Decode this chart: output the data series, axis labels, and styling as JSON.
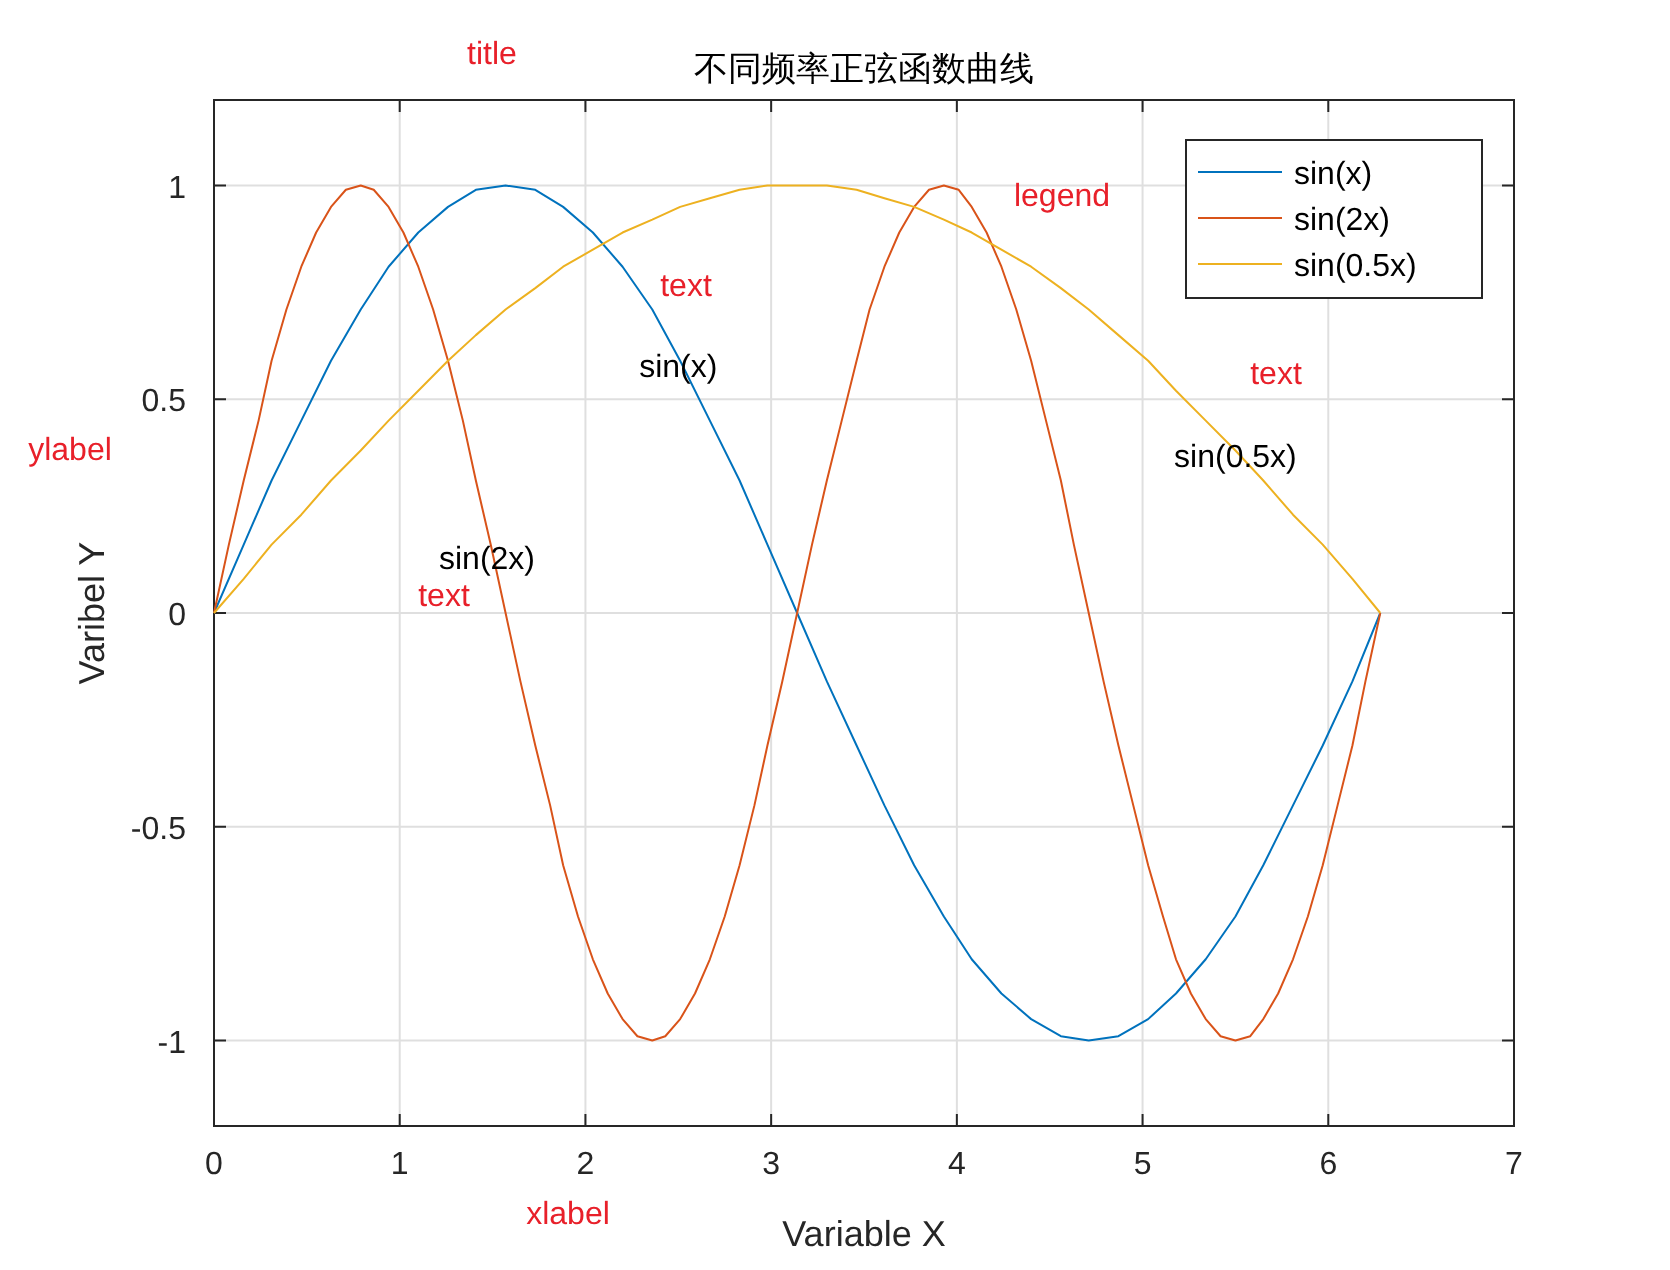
{
  "chart_data": {
    "type": "line",
    "title": "不同频率正弦函数曲线",
    "xlabel": "Variable X",
    "ylabel": "Varibel Y",
    "xlim": [
      0,
      7
    ],
    "xticks": [
      0,
      1,
      2,
      3,
      4,
      5,
      6,
      7
    ],
    "ylim": [
      -1.2,
      1.2
    ],
    "yticks": [
      -1,
      -0.5,
      0,
      0.5,
      1
    ],
    "grid": true,
    "legend": "top right",
    "marker": "none",
    "line_style": "solid",
    "series": [
      {
        "name": "sin(x)",
        "color": "#0072bd",
        "x": [
          0,
          0.16,
          0.31,
          0.47,
          0.63,
          0.79,
          0.94,
          1.1,
          1.26,
          1.41,
          1.57,
          1.73,
          1.88,
          2.04,
          2.2,
          2.36,
          2.51,
          2.67,
          2.83,
          2.98,
          3.14,
          3.3,
          3.46,
          3.61,
          3.77,
          3.93,
          4.08,
          4.24,
          4.4,
          4.56,
          4.71,
          4.87,
          5.03,
          5.18,
          5.34,
          5.5,
          5.65,
          5.81,
          5.97,
          6.13,
          6.28
        ],
        "values": [
          0,
          0.16,
          0.31,
          0.45,
          0.59,
          0.71,
          0.81,
          0.89,
          0.95,
          0.99,
          1,
          0.99,
          0.95,
          0.89,
          0.81,
          0.71,
          0.59,
          0.45,
          0.31,
          0.16,
          0,
          -0.16,
          -0.31,
          -0.45,
          -0.59,
          -0.71,
          -0.81,
          -0.89,
          -0.95,
          -0.99,
          -1,
          -0.99,
          -0.95,
          -0.89,
          -0.81,
          -0.71,
          -0.59,
          -0.45,
          -0.31,
          -0.16,
          0
        ]
      },
      {
        "name": "sin(2x)",
        "color": "#d95319",
        "x": [
          0,
          0.08,
          0.16,
          0.24,
          0.31,
          0.39,
          0.47,
          0.55,
          0.63,
          0.71,
          0.79,
          0.86,
          0.94,
          1.02,
          1.1,
          1.18,
          1.26,
          1.34,
          1.41,
          1.49,
          1.57,
          1.65,
          1.73,
          1.81,
          1.88,
          1.96,
          2.04,
          2.12,
          2.2,
          2.28,
          2.36,
          2.43,
          2.51,
          2.59,
          2.67,
          2.75,
          2.83,
          2.91,
          2.98,
          3.06,
          3.14,
          3.22,
          3.3,
          3.38,
          3.46,
          3.53,
          3.61,
          3.69,
          3.77,
          3.85,
          3.93,
          4.01,
          4.08,
          4.16,
          4.24,
          4.32,
          4.4,
          4.48,
          4.56,
          4.63,
          4.71,
          4.79,
          4.87,
          4.95,
          5.03,
          5.11,
          5.18,
          5.26,
          5.34,
          5.42,
          5.5,
          5.58,
          5.65,
          5.73,
          5.81,
          5.89,
          5.97,
          6.05,
          6.13,
          6.2,
          6.28
        ],
        "values": [
          0,
          0.16,
          0.31,
          0.45,
          0.59,
          0.71,
          0.81,
          0.89,
          0.95,
          0.99,
          1,
          0.99,
          0.95,
          0.89,
          0.81,
          0.71,
          0.59,
          0.45,
          0.31,
          0.16,
          0,
          -0.16,
          -0.31,
          -0.45,
          -0.59,
          -0.71,
          -0.81,
          -0.89,
          -0.95,
          -0.99,
          -1,
          -0.99,
          -0.95,
          -0.89,
          -0.81,
          -0.71,
          -0.59,
          -0.45,
          -0.31,
          -0.16,
          0,
          0.16,
          0.31,
          0.45,
          0.59,
          0.71,
          0.81,
          0.89,
          0.95,
          0.99,
          1,
          0.99,
          0.95,
          0.89,
          0.81,
          0.71,
          0.59,
          0.45,
          0.31,
          0.16,
          0,
          -0.16,
          -0.31,
          -0.45,
          -0.59,
          -0.71,
          -0.81,
          -0.89,
          -0.95,
          -0.99,
          -1,
          -0.99,
          -0.95,
          -0.89,
          -0.81,
          -0.71,
          -0.59,
          -0.45,
          -0.31,
          -0.16,
          0
        ]
      },
      {
        "name": "sin(0.5x)",
        "color": "#edb120",
        "x": [
          0,
          0.16,
          0.31,
          0.47,
          0.63,
          0.79,
          0.94,
          1.1,
          1.26,
          1.41,
          1.57,
          1.73,
          1.88,
          2.04,
          2.2,
          2.36,
          2.51,
          2.67,
          2.83,
          2.98,
          3.14,
          3.3,
          3.46,
          3.61,
          3.77,
          3.93,
          4.08,
          4.24,
          4.4,
          4.56,
          4.71,
          4.87,
          5.03,
          5.18,
          5.34,
          5.5,
          5.65,
          5.81,
          5.97,
          6.13,
          6.28
        ],
        "values": [
          0,
          0.08,
          0.16,
          0.23,
          0.31,
          0.38,
          0.45,
          0.52,
          0.59,
          0.65,
          0.71,
          0.76,
          0.81,
          0.85,
          0.89,
          0.92,
          0.95,
          0.97,
          0.99,
          1,
          1,
          1,
          0.99,
          0.97,
          0.95,
          0.92,
          0.89,
          0.85,
          0.81,
          0.76,
          0.71,
          0.65,
          0.59,
          0.52,
          0.45,
          0.38,
          0.31,
          0.23,
          0.16,
          0.08,
          0
        ]
      }
    ],
    "annotations": [
      {
        "text": "sin(x)",
        "x": 2.5,
        "y": 0.58
      },
      {
        "text": "sin(2x)",
        "x": 1.47,
        "y": 0.13
      },
      {
        "text": "sin(0.5x)",
        "x": 5.5,
        "y": 0.37
      },
      "title",
      "ylabel",
      "xlabel",
      "legend",
      "text",
      "text",
      "text"
    ]
  }
}
